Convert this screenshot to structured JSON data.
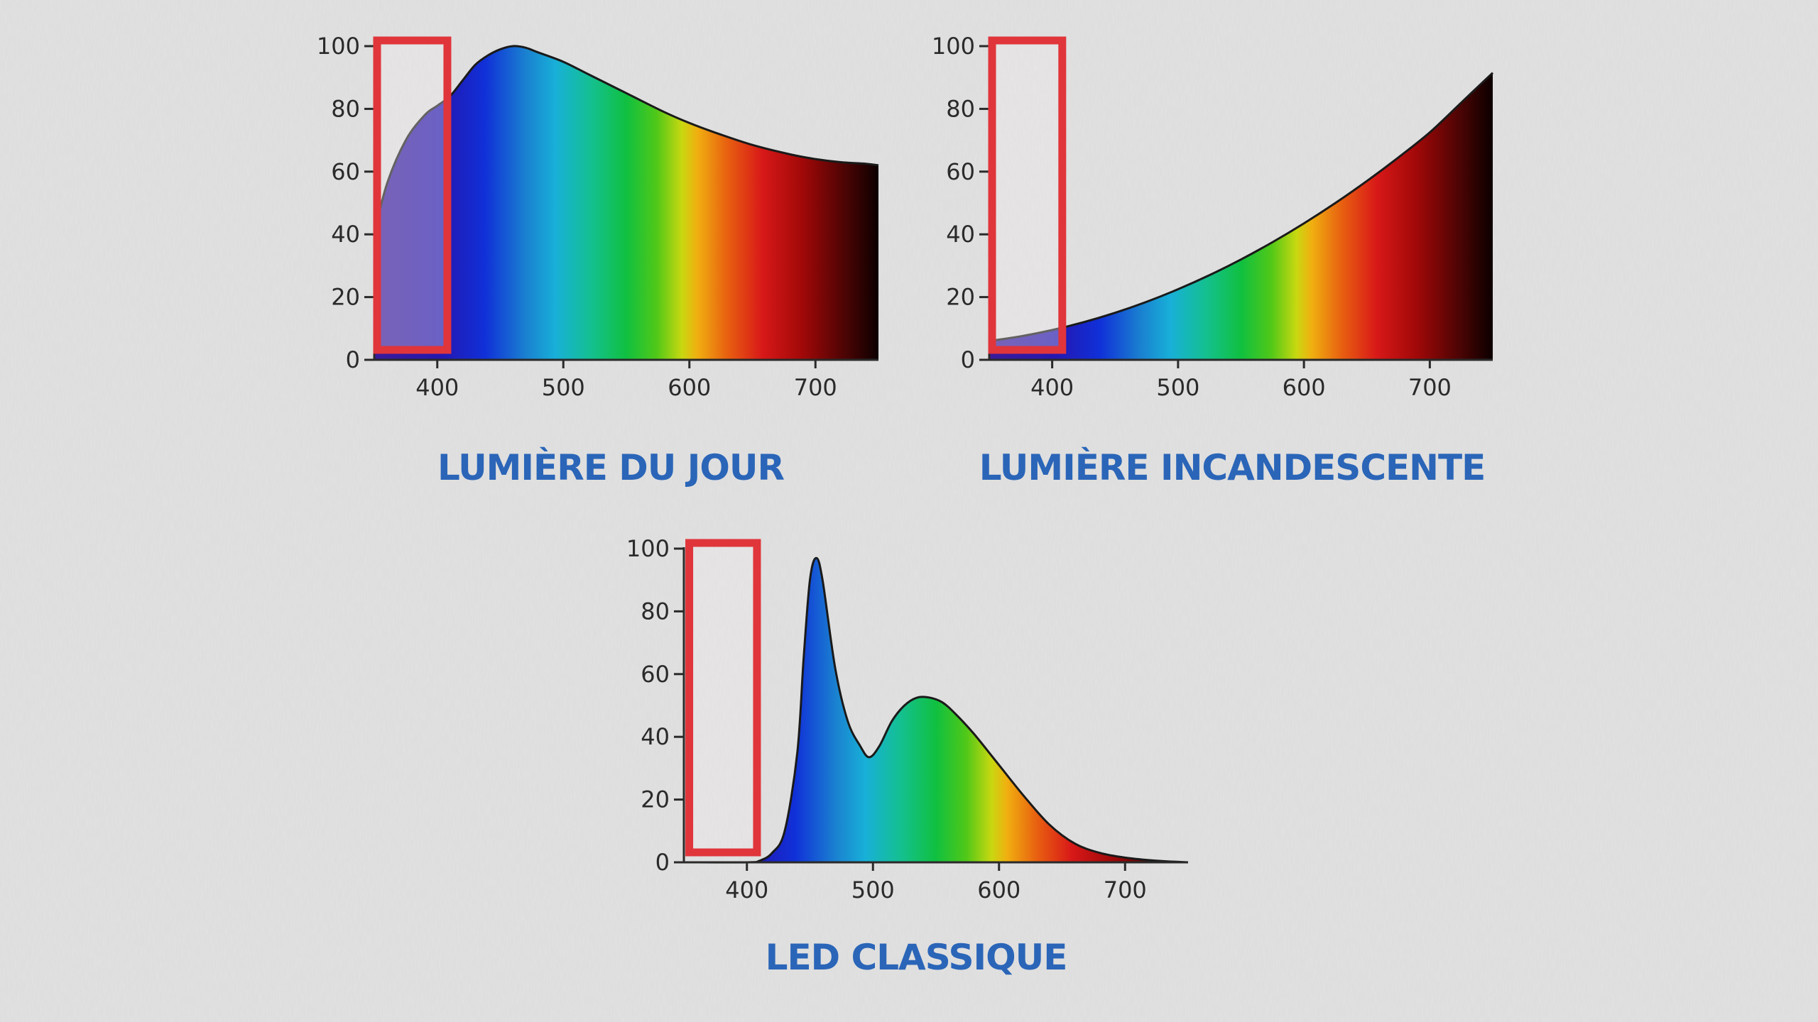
{
  "chart_data": [
    {
      "type": "area",
      "title": "LUMIÈRE DU JOUR",
      "xlabel": "",
      "ylabel": "",
      "xlim": [
        350,
        750
      ],
      "ylim": [
        0,
        100
      ],
      "xticks": [
        400,
        500,
        600,
        700
      ],
      "yticks": [
        0,
        20,
        40,
        60,
        80,
        100
      ],
      "grid": false,
      "x": [
        350,
        360,
        375,
        390,
        400,
        410,
        420,
        430,
        440,
        450,
        460,
        470,
        480,
        500,
        520,
        550,
        580,
        600,
        620,
        650,
        680,
        700,
        720,
        740,
        750
      ],
      "y": [
        40,
        56,
        70,
        78,
        81,
        84,
        89,
        94,
        97,
        99,
        100,
        99.5,
        98,
        95,
        91,
        85,
        79,
        75.5,
        72.5,
        68.5,
        65.5,
        64,
        63,
        62.5,
        62
      ],
      "highlight_range": [
        350,
        408
      ]
    },
    {
      "type": "area",
      "title": "LUMIÈRE INCANDESCENTE",
      "xlabel": "",
      "ylabel": "",
      "xlim": [
        350,
        750
      ],
      "ylim": [
        0,
        100
      ],
      "xticks": [
        400,
        500,
        600,
        700
      ],
      "yticks": [
        0,
        20,
        40,
        60,
        80,
        100
      ],
      "grid": false,
      "x": [
        350,
        375,
        400,
        425,
        450,
        475,
        500,
        525,
        550,
        575,
        600,
        625,
        650,
        675,
        700,
        725,
        750
      ],
      "y": [
        6,
        7.5,
        9.5,
        12,
        15,
        18.5,
        22.5,
        27,
        32,
        37.5,
        43.5,
        50,
        57,
        64.5,
        72.5,
        82,
        91.5
      ],
      "highlight_range": [
        350,
        408
      ]
    },
    {
      "type": "area",
      "title": "LED CLASSIQUE",
      "xlabel": "",
      "ylabel": "",
      "xlim": [
        350,
        750
      ],
      "ylim": [
        0,
        100
      ],
      "xticks": [
        400,
        500,
        600,
        700
      ],
      "yticks": [
        0,
        20,
        40,
        60,
        80,
        100
      ],
      "grid": false,
      "x": [
        350,
        400,
        410,
        420,
        430,
        440,
        445,
        450,
        455,
        460,
        470,
        480,
        490,
        497,
        505,
        515,
        525,
        535,
        545,
        555,
        565,
        580,
        600,
        620,
        640,
        660,
        680,
        700,
        725,
        750
      ],
      "y": [
        0,
        0,
        0.5,
        3,
        10,
        35,
        65,
        90,
        97,
        90,
        62,
        45,
        37,
        33.5,
        37,
        45,
        50,
        52.5,
        52.5,
        51,
        47.5,
        41,
        31,
        21,
        12,
        6,
        3,
        1.5,
        0.5,
        0
      ],
      "highlight_range": [
        352,
        408
      ]
    }
  ],
  "colors": {
    "title": "#2a65b8",
    "highlight": "#e0353b",
    "axis": "#2a2a2a",
    "background": "#dcdcdc"
  }
}
